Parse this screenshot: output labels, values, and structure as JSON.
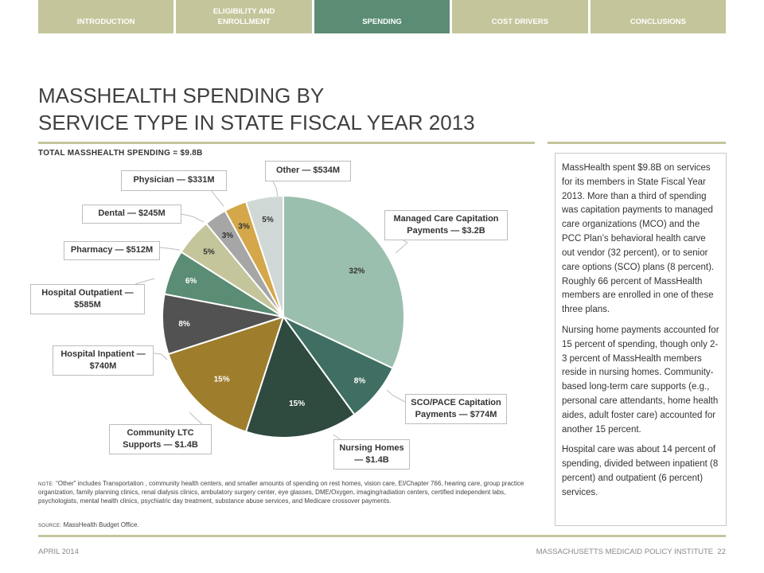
{
  "nav": {
    "tabs": [
      {
        "label": "INTRODUCTION",
        "active": false
      },
      {
        "label": "ELIGIBILITY AND\nENROLLMENT",
        "active": false
      },
      {
        "label": "SPENDING",
        "active": true
      },
      {
        "label": "COST DRIVERS",
        "active": false
      },
      {
        "label": "CONCLUSIONS",
        "active": false
      }
    ]
  },
  "title": {
    "line1": "MASSHEALTH SPENDING BY",
    "line2": "SERVICE TYPE IN STATE FISCAL YEAR 2013"
  },
  "total": "TOTAL MASSHEALTH SPENDING = $9.8B",
  "chart_data": {
    "type": "pie",
    "title": "",
    "slices": [
      {
        "label": "Managed Care Capitation Payments — $3.2B",
        "value": 32,
        "pct_label": "32%",
        "color": "#9bbfae"
      },
      {
        "label": "SCO/PACE Capitation Payments — $774M",
        "value": 8,
        "pct_label": "8%",
        "color": "#3f6e62"
      },
      {
        "label": "Nursing Homes — $1.4B",
        "value": 15,
        "pct_label": "15%",
        "color": "#2f4a3f"
      },
      {
        "label": "Community LTC Supports — $1.4B",
        "value": 15,
        "pct_label": "15%",
        "color": "#9e7e2c"
      },
      {
        "label": "Hospital Inpatient — $740M",
        "value": 8,
        "pct_label": "8%",
        "color": "#525252"
      },
      {
        "label": "Hospital Outpatient — $585M",
        "value": 6,
        "pct_label": "6%",
        "color": "#5b8c74"
      },
      {
        "label": "Pharmacy — $512M",
        "value": 5,
        "pct_label": "5%",
        "color": "#c4c59b"
      },
      {
        "label": "Dental — $245M",
        "value": 3,
        "pct_label": "3%",
        "color": "#a6a6a6"
      },
      {
        "label": "Physician — $331M",
        "value": 3,
        "pct_label": "3%",
        "color": "#d4a74a"
      },
      {
        "label": "Other — $534M",
        "value": 5,
        "pct_label": "5%",
        "color": "#cfd8d4"
      }
    ],
    "callouts": [
      "Managed Care Capitation Payments — $3.2B",
      "SCO/PACE Capitation Payments — $774M",
      "Nursing Homes — $1.4B",
      "Community LTC Supports — $1.4B",
      "Hospital Inpatient — $740M",
      "Hospital Outpatient — $585M",
      "Pharmacy — $512M",
      "Dental — $245M",
      "Physician — $331M",
      "Other — $534M"
    ]
  },
  "note": {
    "label": "NOTE:",
    "text": " “Other” includes Transportation , community health centers, and smaller amounts of spending on rest homes, vision care, EI/Chapter 766, hearing care, group practice organization, family planning clinics, renal dialysis clinics, ambulatory surgery center, eye glasses, DME/Oxygen, imaging/radiation centers, certified independent labs, psychologists, mental health clinics, psychiatric day treatment, substance abuse services, and Medicare crossover payments."
  },
  "source": {
    "label": "SOURCE:",
    "text": " MassHealth Budget Office."
  },
  "sidebar": {
    "paragraphs": [
      "MassHealth spent $9.8B on services for its members in State Fiscal Year 2013.  More than a third of spending was capitation payments to managed care organizations (MCO) and the PCC Plan’s behavioral health carve out vendor (32 percent), or to senior care options (SCO) plans (8 percent). Roughly 66 percent of MassHealth members are enrolled in one of these three plans.",
      "Nursing home payments accounted for 15 percent of spending, though only 2-3 percent of MassHealth members reside in nursing homes. Community-based long-term care supports (e.g., personal care attendants, home health aides, adult foster care) accounted for another 15 percent.",
      "Hospital care was about 14 percent of spending, divided between inpatient (8 percent) and outpatient (6 percent) services."
    ]
  },
  "footer": {
    "date": "APRIL 2014",
    "org": "MASSACHUSETTS MEDICAID POLICY INSTITUTE",
    "page": "22"
  }
}
